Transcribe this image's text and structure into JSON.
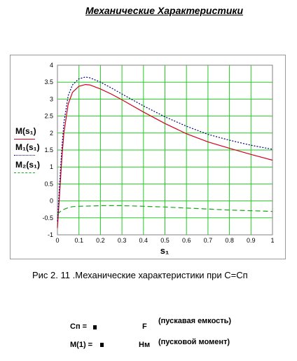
{
  "title": "Механические Характеристики",
  "caption": "Рис 2. 11 .Механические характеристики при С=Сп",
  "legend": [
    {
      "label": "M(s₁)",
      "color": "#d4001c",
      "dash": "solid"
    },
    {
      "label": "M₁(s₁)",
      "color": "#00007f",
      "dash": "dotted"
    },
    {
      "label": "M₂(s₁)",
      "color": "#19a519",
      "dash": "dashed"
    }
  ],
  "params": [
    {
      "name": "Cп =",
      "unit": "F",
      "note": "(пускавая емкость)"
    },
    {
      "name": "M(1) =",
      "unit": "Нм",
      "note": "(пусковой момент)"
    }
  ],
  "chart_data": {
    "type": "line",
    "xlabel": "s₁",
    "ylabel": "",
    "xlim": [
      0,
      1
    ],
    "ylim": [
      -1,
      4
    ],
    "xticks": [
      "0",
      "0.1",
      "0.2",
      "0.3",
      "0.4",
      "0.5",
      "0.6",
      "0.7",
      "0.8",
      "0.9",
      "1"
    ],
    "yticks": [
      "-1",
      "-0.5",
      "0",
      "0.5",
      "1",
      "1.5",
      "2",
      "2.5",
      "3",
      "3.5",
      "4"
    ],
    "grid": true,
    "grid_color": "#22cc22",
    "series": [
      {
        "name": "M(s₁)",
        "color": "#d4001c",
        "dash": "solid",
        "x": [
          0,
          0.01,
          0.02,
          0.03,
          0.05,
          0.07,
          0.1,
          0.13,
          0.15,
          0.2,
          0.25,
          0.3,
          0.4,
          0.5,
          0.6,
          0.7,
          0.8,
          0.9,
          1.0
        ],
        "y": [
          -0.8,
          0.2,
          1.2,
          2.0,
          2.85,
          3.2,
          3.38,
          3.43,
          3.42,
          3.3,
          3.15,
          2.98,
          2.62,
          2.28,
          1.98,
          1.74,
          1.55,
          1.37,
          1.2
        ]
      },
      {
        "name": "M₁(s₁)",
        "color": "#00007f",
        "dash": "dotted",
        "x": [
          0,
          0.01,
          0.02,
          0.03,
          0.05,
          0.07,
          0.1,
          0.13,
          0.15,
          0.2,
          0.25,
          0.3,
          0.4,
          0.5,
          0.6,
          0.7,
          0.8,
          0.9,
          1.0
        ],
        "y": [
          -0.6,
          0.5,
          1.5,
          2.3,
          3.1,
          3.42,
          3.6,
          3.65,
          3.63,
          3.5,
          3.33,
          3.15,
          2.8,
          2.48,
          2.2,
          1.96,
          1.79,
          1.64,
          1.52
        ]
      },
      {
        "name": "M₂(s₁)",
        "color": "#19a519",
        "dash": "dashed",
        "x": [
          0,
          0.01,
          0.02,
          0.03,
          0.05,
          0.07,
          0.1,
          0.15,
          0.2,
          0.3,
          0.4,
          0.5,
          0.6,
          0.7,
          0.8,
          0.9,
          1.0
        ],
        "y": [
          -0.4,
          -0.33,
          -0.28,
          -0.25,
          -0.2,
          -0.17,
          -0.16,
          -0.15,
          -0.14,
          -0.14,
          -0.16,
          -0.18,
          -0.21,
          -0.24,
          -0.27,
          -0.29,
          -0.31
        ]
      }
    ]
  }
}
